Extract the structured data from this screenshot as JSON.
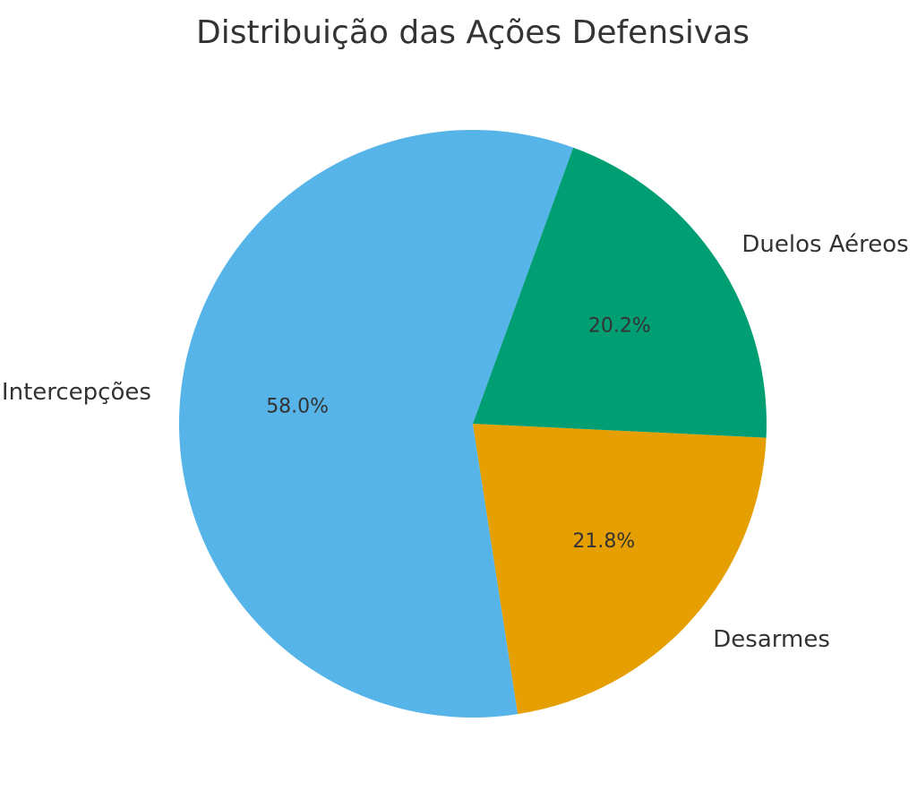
{
  "chart_data": {
    "type": "pie",
    "title": "Distribuição das Ações Defensivas",
    "slices": [
      {
        "label": "Intercepções",
        "value": 58.0,
        "pct_label": "58.0%",
        "color": "#56B4E9"
      },
      {
        "label": "Desarmes",
        "value": 21.8,
        "pct_label": "21.8%",
        "color": "#E69F00"
      },
      {
        "label": "Duelos Aéreos",
        "value": 20.2,
        "pct_label": "20.2%",
        "color": "#009E73"
      }
    ]
  }
}
